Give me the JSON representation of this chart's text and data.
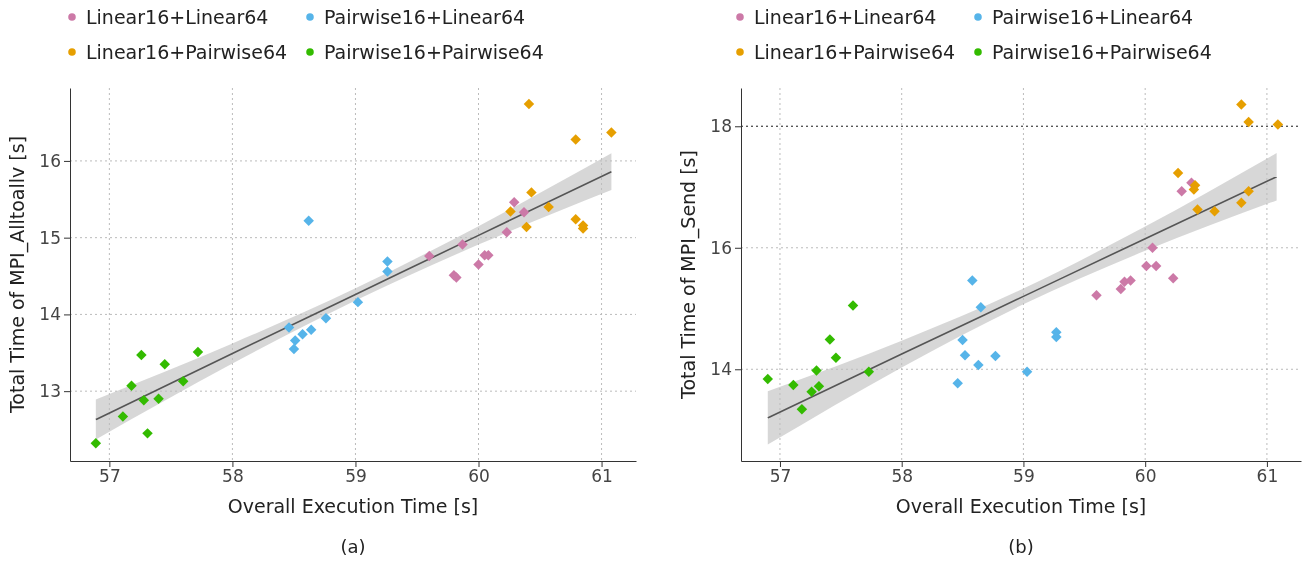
{
  "chart_data": [
    {
      "type": "scatter",
      "xlabel": "Overall Execution Time [s]",
      "ylabel": "Total Time of MPI_Alltoallv [s]",
      "xlim": [
        56.68,
        61.28
      ],
      "ylim": [
        12.09,
        16.95
      ],
      "xticks": [
        57,
        58,
        59,
        60,
        61
      ],
      "yticks": [
        13,
        14,
        15,
        16
      ],
      "grid": true,
      "legend": "top",
      "marker": "diamond",
      "annotations": [
        "(a)"
      ],
      "series": [
        {
          "name": "Linear16+Linear64",
          "color": "#cc79a7",
          "x": [
            59.6,
            59.87,
            59.8,
            59.82,
            60.0,
            60.05,
            60.08,
            60.23,
            60.29,
            60.37
          ],
          "values": [
            14.76,
            14.91,
            14.51,
            14.48,
            14.65,
            14.77,
            14.77,
            15.07,
            15.46,
            15.33
          ]
        },
        {
          "name": "Linear16+Pairwise64",
          "color": "#e69f00",
          "x": [
            60.41,
            60.79,
            61.08,
            60.43,
            60.26,
            60.57,
            60.39,
            60.79,
            60.85,
            60.85
          ],
          "values": [
            16.74,
            16.28,
            16.37,
            15.59,
            15.34,
            15.4,
            15.14,
            15.24,
            15.16,
            15.12
          ]
        },
        {
          "name": "Pairwise16+Linear64",
          "color": "#56b4e9",
          "x": [
            58.46,
            58.51,
            58.5,
            58.57,
            58.64,
            58.76,
            58.62,
            59.02,
            59.26,
            59.26
          ],
          "values": [
            13.83,
            13.66,
            13.55,
            13.74,
            13.8,
            13.95,
            15.22,
            14.16,
            14.69,
            14.56
          ]
        },
        {
          "name": "Pairwise16+Pairwise64",
          "color": "#33bb00",
          "x": [
            56.89,
            57.11,
            57.18,
            57.26,
            57.28,
            57.31,
            57.4,
            57.45,
            57.6,
            57.72
          ],
          "values": [
            12.32,
            12.67,
            13.07,
            13.47,
            12.88,
            12.45,
            12.9,
            13.35,
            13.13,
            13.51
          ]
        },
        {
          "type": "line",
          "marker": "none",
          "color": "#555555",
          "x": [
            56.89,
            58,
            59,
            60,
            61.08
          ],
          "values": [
            12.63,
            13.49,
            14.26,
            15.03,
            15.86
          ],
          "lower": [
            12.37,
            13.36,
            14.18,
            14.91,
            15.62
          ],
          "upper": [
            12.89,
            13.62,
            14.34,
            15.15,
            16.1
          ]
        }
      ]
    },
    {
      "type": "scatter",
      "xlabel": "Overall Execution Time [s]",
      "ylabel": "Total Time of MPI_Send [s]",
      "xlim": [
        56.68,
        61.28
      ],
      "ylim": [
        12.49,
        18.63
      ],
      "xticks": [
        57,
        58,
        59,
        60,
        61
      ],
      "yticks": [
        14,
        16,
        18
      ],
      "grid": true,
      "legend": "top",
      "marker": "diamond",
      "annotations": [
        "(b)"
      ],
      "ref_lines": [
        {
          "axis": "y",
          "value": 18,
          "color": "#333333",
          "line_style": "dotted"
        }
      ],
      "series": [
        {
          "name": "Linear16+Linear64",
          "color": "#cc79a7",
          "x": [
            59.6,
            59.8,
            59.83,
            59.88,
            60.01,
            60.09,
            60.06,
            60.23,
            60.3,
            60.38
          ],
          "values": [
            15.22,
            15.32,
            15.44,
            15.46,
            15.7,
            15.7,
            16.0,
            15.5,
            16.93,
            17.07
          ]
        },
        {
          "name": "Linear16+Pairwise64",
          "color": "#e69f00",
          "x": [
            60.79,
            60.85,
            61.09,
            60.27,
            60.41,
            60.4,
            60.43,
            60.57,
            60.79,
            60.85
          ],
          "values": [
            18.36,
            18.07,
            18.03,
            17.23,
            17.03,
            16.96,
            16.63,
            16.6,
            16.74,
            16.93
          ]
        },
        {
          "name": "Pairwise16+Linear64",
          "color": "#56b4e9",
          "x": [
            58.46,
            58.5,
            58.52,
            58.58,
            58.63,
            58.65,
            58.77,
            59.03,
            59.27,
            59.27
          ],
          "values": [
            13.77,
            14.48,
            14.23,
            15.46,
            14.07,
            15.02,
            14.22,
            13.96,
            14.61,
            14.53
          ]
        },
        {
          "name": "Pairwise16+Pairwise64",
          "color": "#33bb00",
          "x": [
            56.9,
            57.11,
            57.18,
            57.26,
            57.3,
            57.32,
            57.41,
            57.46,
            57.6,
            57.73
          ],
          "values": [
            13.84,
            13.74,
            13.34,
            13.63,
            13.98,
            13.72,
            14.49,
            14.19,
            15.05,
            13.96
          ]
        },
        {
          "type": "line",
          "marker": "none",
          "color": "#555555",
          "x": [
            56.9,
            58,
            59,
            60,
            61.08
          ],
          "values": [
            13.2,
            14.25,
            15.2,
            16.15,
            17.17
          ],
          "lower": [
            12.76,
            14.03,
            15.07,
            15.95,
            16.78
          ],
          "upper": [
            13.64,
            14.47,
            15.33,
            16.35,
            17.56
          ]
        }
      ]
    }
  ]
}
